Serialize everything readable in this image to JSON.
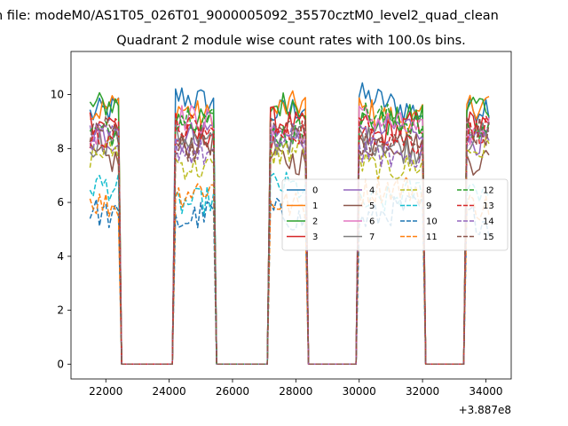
{
  "figure": {
    "suptitle": "n file: modeM0/AS1T05_026T01_9000005092_35570cztM0_level2_quad_clean"
  },
  "chart_data": {
    "type": "line",
    "title": "Quadrant 2 module wise count rates with 100.0s bins.",
    "xlabel": "",
    "ylabel": "",
    "x_offset_label": "+3.887e8",
    "xlim": [
      20900,
      34800
    ],
    "ylim": [
      -0.55,
      11.6
    ],
    "xticks": [
      22000,
      24000,
      26000,
      28000,
      30000,
      32000,
      34000
    ],
    "xtick_labels": [
      "22000",
      "24000",
      "26000",
      "28000",
      "30000",
      "32000",
      "34000"
    ],
    "yticks": [
      0,
      2,
      4,
      6,
      8,
      10
    ],
    "ytick_labels": [
      "0",
      "2",
      "4",
      "6",
      "8",
      "10"
    ],
    "grid": false,
    "legend": {
      "placement": "center-right",
      "columns": 4,
      "fontsize": "small"
    },
    "bin_seconds": 100,
    "segments": [
      {
        "start": 21500,
        "end": 22400
      },
      {
        "start": 24200,
        "end": 25400
      },
      {
        "start": 27200,
        "end": 28300
      },
      {
        "start": 30000,
        "end": 32000
      },
      {
        "start": 33400,
        "end": 34100
      }
    ],
    "series": [
      {
        "name": "0",
        "color": "#1f77b4",
        "dash": "solid",
        "mean": 9.6
      },
      {
        "name": "1",
        "color": "#ff7f0e",
        "dash": "solid",
        "mean": 9.4
      },
      {
        "name": "2",
        "color": "#2ca02c",
        "dash": "solid",
        "mean": 9.3
      },
      {
        "name": "3",
        "color": "#d62728",
        "dash": "solid",
        "mean": 8.7
      },
      {
        "name": "4",
        "color": "#9467bd",
        "dash": "solid",
        "mean": 8.5
      },
      {
        "name": "5",
        "color": "#8c564b",
        "dash": "solid",
        "mean": 7.9
      },
      {
        "name": "6",
        "color": "#e377c2",
        "dash": "solid",
        "mean": 8.8
      },
      {
        "name": "7",
        "color": "#7f7f7f",
        "dash": "solid",
        "mean": 8.3
      },
      {
        "name": "8",
        "color": "#bcbd22",
        "dash": "dashed",
        "mean": 7.6
      },
      {
        "name": "9",
        "color": "#17becf",
        "dash": "dashed",
        "mean": 6.3
      },
      {
        "name": "10",
        "color": "#1f77b4",
        "dash": "dashed",
        "mean": 5.5
      },
      {
        "name": "11",
        "color": "#ff7f0e",
        "dash": "dashed",
        "mean": 6.2
      },
      {
        "name": "12",
        "color": "#2ca02c",
        "dash": "dashed",
        "mean": 8.9
      },
      {
        "name": "13",
        "color": "#d62728",
        "dash": "dashed",
        "mean": 8.6
      },
      {
        "name": "14",
        "color": "#9467bd",
        "dash": "dashed",
        "mean": 8.1
      },
      {
        "name": "15",
        "color": "#8c564b",
        "dash": "dashed",
        "mean": 8.4
      }
    ]
  }
}
